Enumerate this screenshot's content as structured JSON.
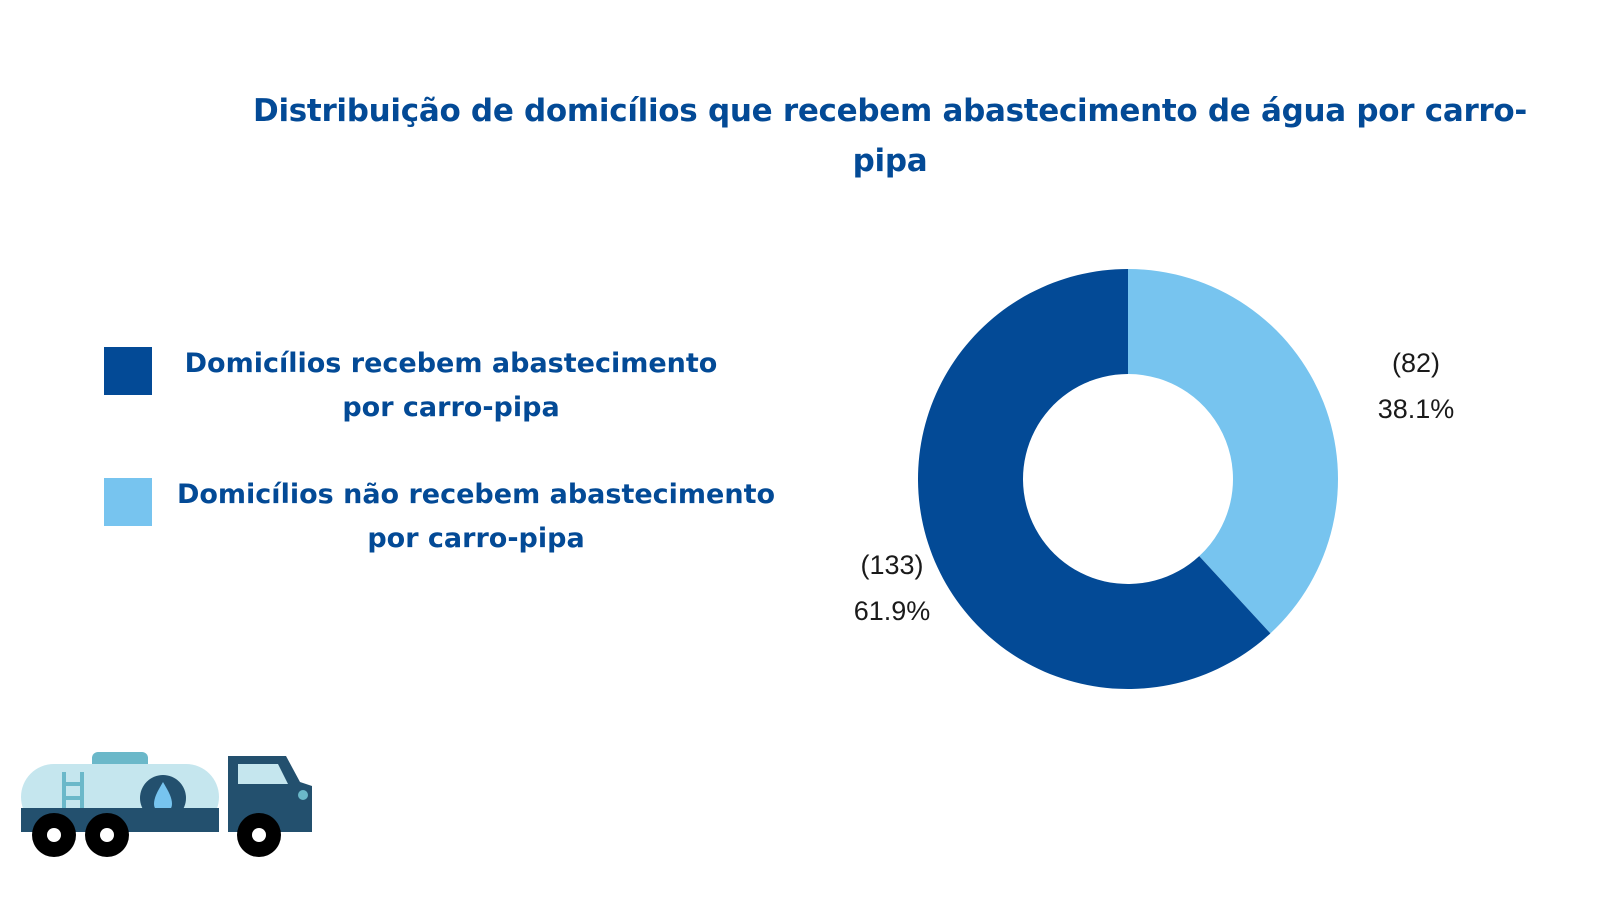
{
  "title": "Distribuição de domicílios que recebem abastecimento de água por carro-pipa",
  "colors": {
    "dark_blue": "#034a96",
    "light_blue": "#77c4ef",
    "text": "#034a96"
  },
  "chart_data": {
    "type": "pie",
    "title": "Distribuição de domicílios que recebem abastecimento de água por carro-pipa",
    "donut": true,
    "legend_position": "left",
    "series": [
      {
        "name": "Domicílios recebem abastecimento por carro-pipa",
        "value": 133,
        "percent": 61.9,
        "count_label": "(133)",
        "percent_label": "61.9%",
        "color": "#034a96"
      },
      {
        "name": "Domicílios não recebem abastecimento por carro-pipa",
        "value": 82,
        "percent": 38.1,
        "count_label": "(82)",
        "percent_label": "38.1%",
        "color": "#77c4ef"
      }
    ]
  },
  "illustration": {
    "icon": "water-tanker-truck-icon"
  }
}
